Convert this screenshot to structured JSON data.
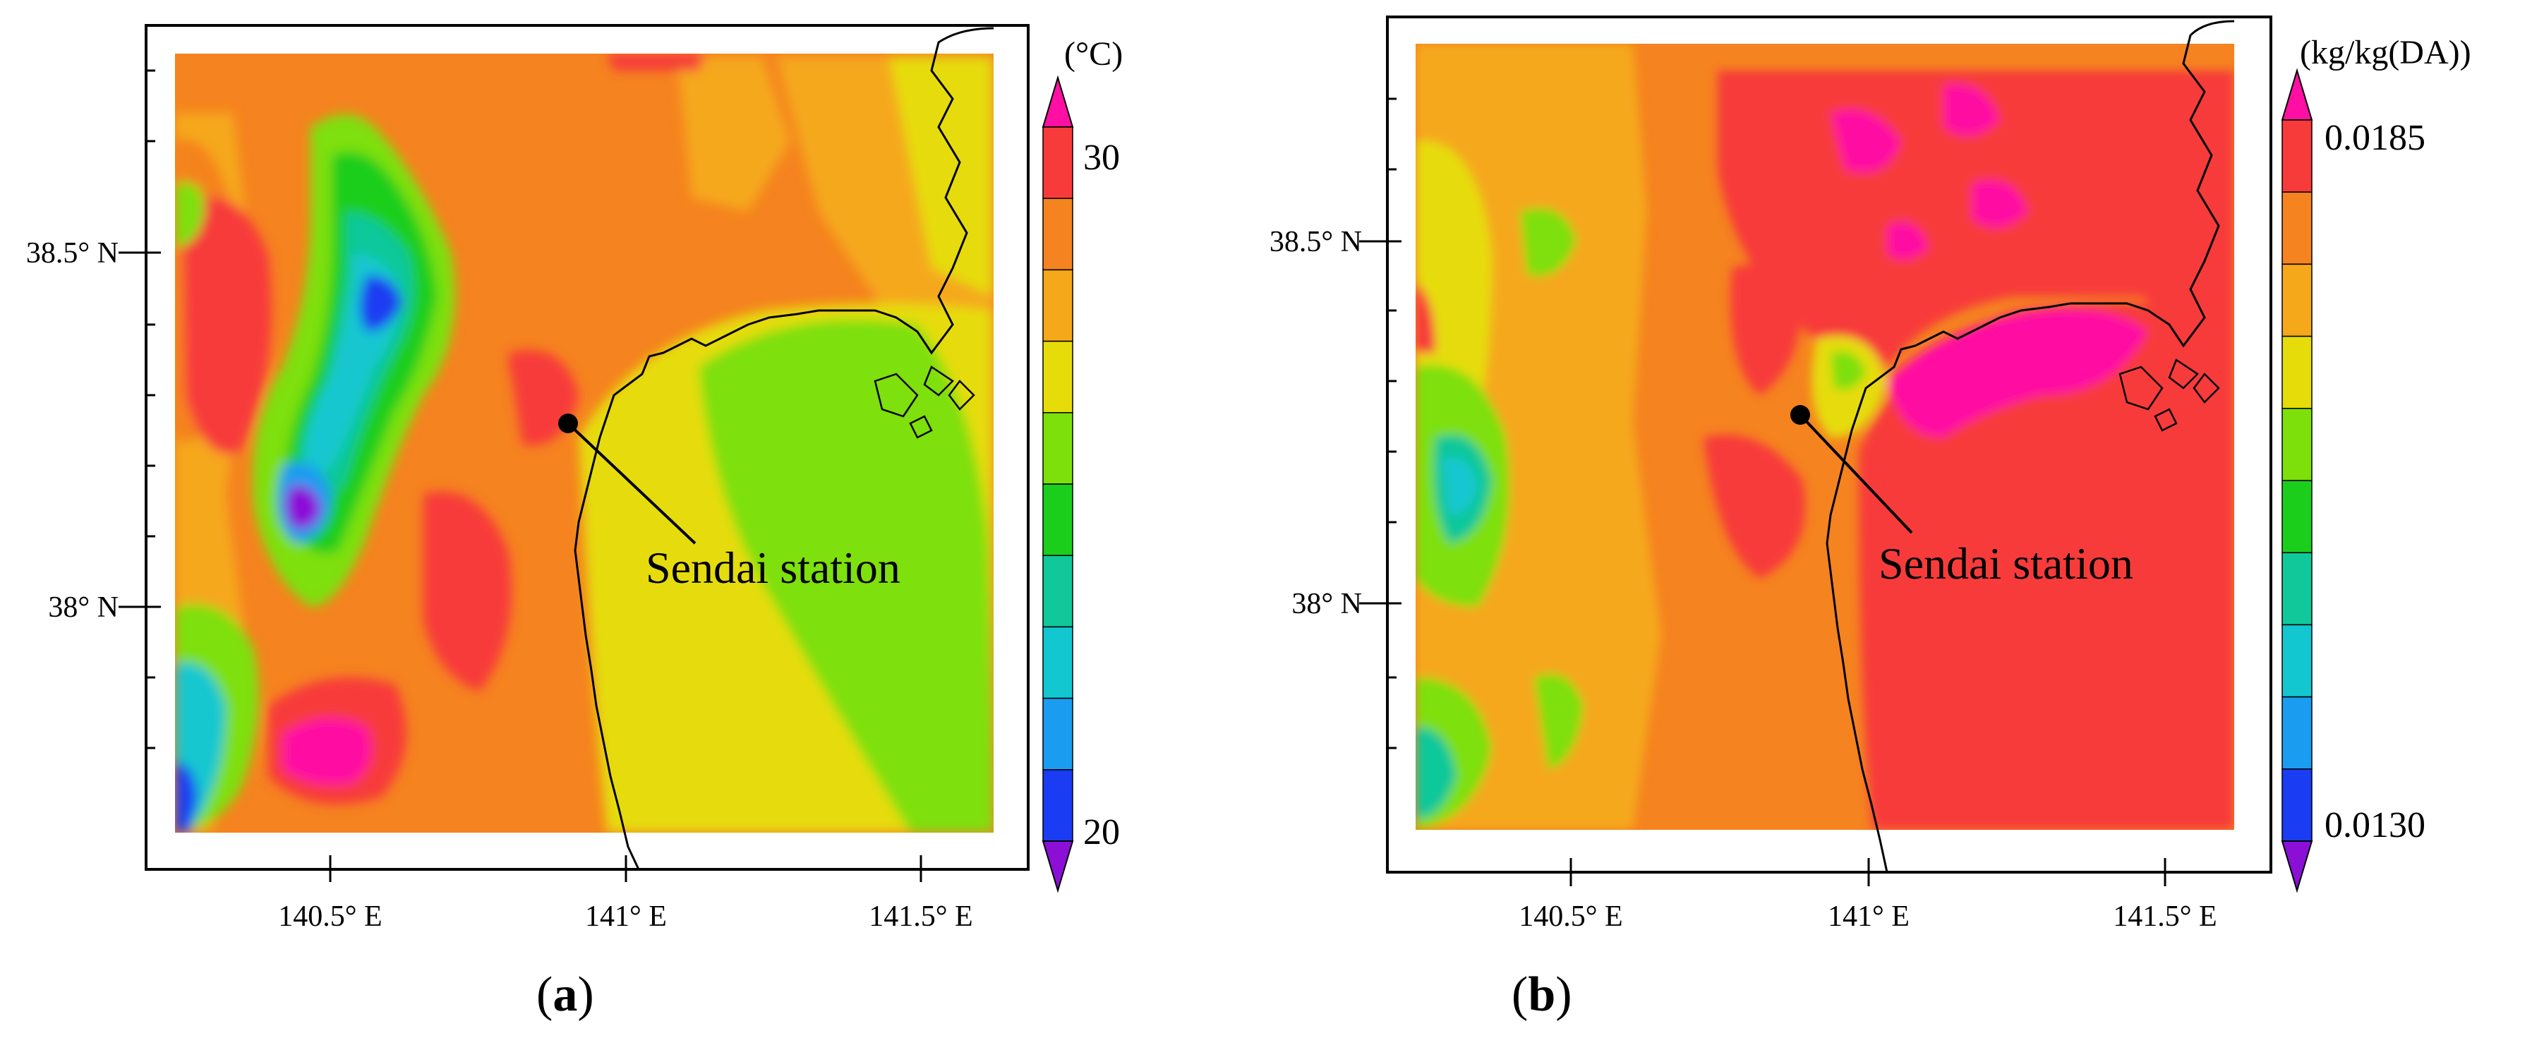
{
  "panel_a": {
    "label": "a",
    "unit": "(°C)",
    "colorbar": {
      "max": "30",
      "min": "20",
      "colors": [
        "#ff0fa3",
        "#f73b3b",
        "#f5831f",
        "#f5a81a",
        "#e6dc0a",
        "#7ee00a",
        "#1cce1c",
        "#10c89a",
        "#12c7d0",
        "#1a9cf0",
        "#1a3cf2",
        "#8c0fd8"
      ]
    },
    "lat_labels": [
      "38.5° N",
      "38° N"
    ],
    "lon_labels": [
      "140.5° E",
      "141° E",
      "141.5° E"
    ],
    "station_label": "Sendai station"
  },
  "panel_b": {
    "label": "b",
    "unit": "(kg/kg(DA))",
    "colorbar": {
      "max": "0.0185",
      "min": "0.0130",
      "colors": [
        "#ff0fa3",
        "#f73b3b",
        "#f5831f",
        "#f5a81a",
        "#e6dc0a",
        "#7ee00a",
        "#1cce1c",
        "#10c89a",
        "#12c7d0",
        "#1a9cf0",
        "#1a3cf2",
        "#8c0fd8"
      ]
    },
    "lat_labels": [
      "38.5° N",
      "38° N"
    ],
    "lon_labels": [
      "140.5° E",
      "141° E",
      "141.5° E"
    ],
    "station_label": "Sendai station"
  },
  "caption_parens": [
    "(",
    ")"
  ]
}
